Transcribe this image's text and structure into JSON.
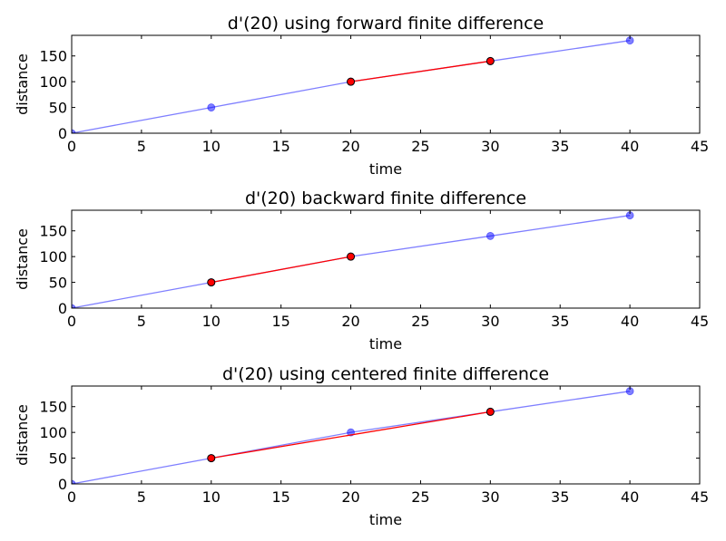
{
  "chart_data": [
    {
      "type": "line",
      "title": "d'(20) using forward finite difference",
      "xlabel": "time",
      "ylabel": "distance",
      "xlim": [
        0,
        45
      ],
      "ylim": [
        0,
        190
      ],
      "xticks": [
        0,
        5,
        10,
        15,
        20,
        25,
        30,
        35,
        40,
        45
      ],
      "yticks": [
        0,
        50,
        100,
        150
      ],
      "grid": false,
      "series": [
        {
          "color": "#0000ff",
          "alpha": 0.5,
          "marker": "circle",
          "x": [
            0,
            10,
            20,
            30,
            40
          ],
          "y": [
            0,
            50,
            100,
            140,
            180
          ]
        },
        {
          "color": "#ff0000",
          "alpha": 1.0,
          "marker": "circle",
          "x": [
            20,
            30
          ],
          "y": [
            100,
            140
          ]
        }
      ]
    },
    {
      "type": "line",
      "title": "d'(20) backward finite difference",
      "xlabel": "time",
      "ylabel": "distance",
      "xlim": [
        0,
        45
      ],
      "ylim": [
        0,
        190
      ],
      "xticks": [
        0,
        5,
        10,
        15,
        20,
        25,
        30,
        35,
        40,
        45
      ],
      "yticks": [
        0,
        50,
        100,
        150
      ],
      "grid": false,
      "series": [
        {
          "color": "#0000ff",
          "alpha": 0.5,
          "marker": "circle",
          "x": [
            0,
            10,
            20,
            30,
            40
          ],
          "y": [
            0,
            50,
            100,
            140,
            180
          ]
        },
        {
          "color": "#ff0000",
          "alpha": 1.0,
          "marker": "circle",
          "x": [
            10,
            20
          ],
          "y": [
            50,
            100
          ]
        }
      ]
    },
    {
      "type": "line",
      "title": "d'(20) using centered finite difference",
      "xlabel": "time",
      "ylabel": "distance",
      "xlim": [
        0,
        45
      ],
      "ylim": [
        0,
        190
      ],
      "xticks": [
        0,
        5,
        10,
        15,
        20,
        25,
        30,
        35,
        40,
        45
      ],
      "yticks": [
        0,
        50,
        100,
        150
      ],
      "grid": false,
      "series": [
        {
          "color": "#0000ff",
          "alpha": 0.5,
          "marker": "circle",
          "x": [
            0,
            10,
            20,
            30,
            40
          ],
          "y": [
            0,
            50,
            100,
            140,
            180
          ]
        },
        {
          "color": "#ff0000",
          "alpha": 1.0,
          "marker": "circle",
          "x": [
            10,
            30
          ],
          "y": [
            50,
            140
          ]
        }
      ]
    }
  ]
}
